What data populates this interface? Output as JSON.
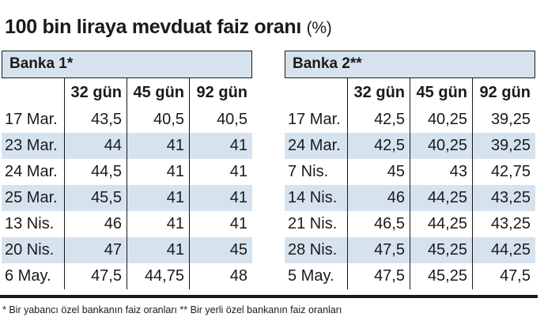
{
  "title": "100 bin liraya mevduat faiz oranı",
  "title_unit": "(%)",
  "chart_data": {
    "type": "table",
    "title": "100 bin liraya mevduat faiz oranı (%)",
    "tables": [
      {
        "name": "Banka 1*",
        "columns": [
          "",
          "32 gün",
          "45 gün",
          "92 gün"
        ],
        "rows": [
          [
            "17 Mar.",
            "43,5",
            "40,5",
            "40,5"
          ],
          [
            "23 Mar.",
            "44",
            "41",
            "41"
          ],
          [
            "24 Mar.",
            "44,5",
            "41",
            "41"
          ],
          [
            "25 Mar.",
            "45,5",
            "41",
            "41"
          ],
          [
            "13 Nis.",
            "46",
            "41",
            "41"
          ],
          [
            "20 Nis.",
            "47",
            "41",
            "45"
          ],
          [
            "6 May.",
            "47,5",
            "44,75",
            "48"
          ]
        ]
      },
      {
        "name": "Banka 2**",
        "columns": [
          "",
          "32 gün",
          "45 gün",
          "92 gün"
        ],
        "rows": [
          [
            "17 Mar.",
            "42,5",
            "40,25",
            "39,25"
          ],
          [
            "24 Mar.",
            "42,5",
            "40,25",
            "39,25"
          ],
          [
            "7 Nis.",
            "45",
            "43",
            "42,75"
          ],
          [
            "14 Nis.",
            "46",
            "44,25",
            "43,25"
          ],
          [
            "21 Nis.",
            "46,5",
            "44,25",
            "43,25"
          ],
          [
            "28 Nis.",
            "47,5",
            "45,25",
            "44,25"
          ],
          [
            "5 May.",
            "47,5",
            "45,25",
            "47,5"
          ]
        ]
      }
    ],
    "shaded_row_color": "#d6e3ef"
  },
  "footnote": "* Bir yabancı özel bankanın faiz oranları ** Bir yerli özel bankanın faiz oranları"
}
